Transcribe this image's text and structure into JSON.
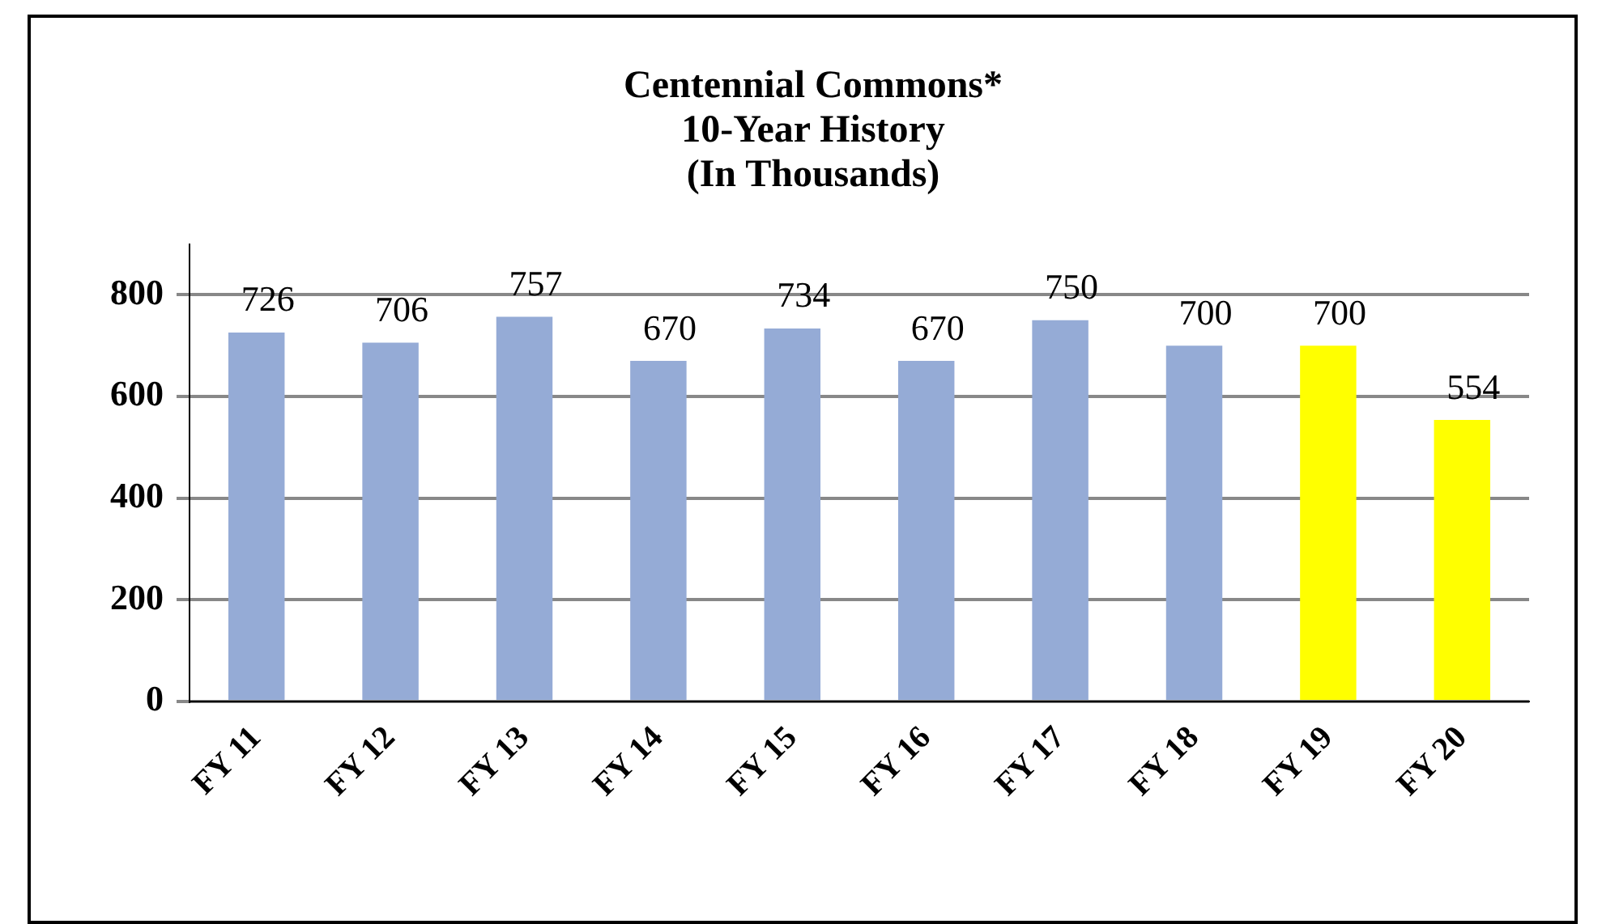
{
  "chart_data": {
    "type": "bar",
    "title": "Centennial Commons*\n10-Year History\n(In Thousands)",
    "categories": [
      "FY 11",
      "FY 12",
      "FY 13",
      "FY 14",
      "FY 15",
      "FY 16",
      "FY 17",
      "FY 18",
      "FY 19",
      "FY 20"
    ],
    "values": [
      726,
      706,
      757,
      670,
      734,
      670,
      750,
      700,
      700,
      554
    ],
    "colors": [
      "#95abd6",
      "#95abd6",
      "#95abd6",
      "#95abd6",
      "#95abd6",
      "#95abd6",
      "#95abd6",
      "#95abd6",
      "#ffff00",
      "#ffff00"
    ],
    "ylim": [
      0,
      900
    ],
    "yticks": [
      0,
      200,
      400,
      600,
      800
    ],
    "grid": "y",
    "data_labels": true,
    "legend": false
  }
}
